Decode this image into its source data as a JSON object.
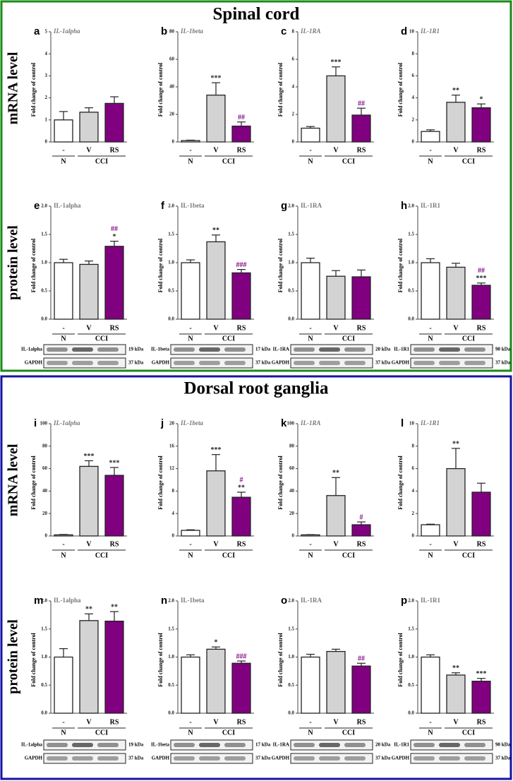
{
  "sections": [
    {
      "title": "Spinal cord",
      "rows": [
        "mRNA level",
        "protein level"
      ]
    },
    {
      "title": "Dorsal root ganglia",
      "rows": [
        "mRNA level",
        "protein level"
      ]
    }
  ],
  "chart_data": [
    {
      "type": "bar",
      "letter": "a",
      "title": "IL-1alpha",
      "ylabel": "Fold change of control",
      "categories": [
        "-",
        "V",
        "RS"
      ],
      "groups": [
        "N",
        "CCI"
      ],
      "colors": [
        "#ffffff",
        "#d3d3d3",
        "#800080"
      ],
      "values": [
        1,
        1.35,
        1.75
      ],
      "errors": [
        0.38,
        0.2,
        0.3
      ],
      "annotations": [
        [],
        [],
        []
      ],
      "ylim": [
        0,
        5
      ],
      "yticks": [
        0,
        1,
        2,
        3,
        4,
        5
      ]
    },
    {
      "type": "bar",
      "letter": "b",
      "title": "IL-1beta",
      "ylabel": "Fold change of control",
      "categories": [
        "-",
        "V",
        "RS"
      ],
      "groups": [
        "N",
        "CCI"
      ],
      "colors": [
        "#ffffff",
        "#d3d3d3",
        "#800080"
      ],
      "values": [
        1,
        34,
        11.5
      ],
      "errors": [
        0.3,
        9,
        3
      ],
      "annotations": [
        [],
        [
          {
            "text": "***",
            "color": "#222222"
          }
        ],
        [
          {
            "text": "##",
            "color": "#800080"
          }
        ]
      ],
      "ylim": [
        0,
        80
      ],
      "yticks": [
        0,
        20,
        40,
        60,
        80
      ]
    },
    {
      "type": "bar",
      "letter": "c",
      "title": "IL-1RA",
      "ylabel": "Fold change of control",
      "categories": [
        "-",
        "V",
        "RS"
      ],
      "groups": [
        "N",
        "CCI"
      ],
      "colors": [
        "#ffffff",
        "#d3d3d3",
        "#800080"
      ],
      "values": [
        1,
        4.8,
        1.95
      ],
      "errors": [
        0.12,
        0.65,
        0.5
      ],
      "annotations": [
        [],
        [
          {
            "text": "***",
            "color": "#222222"
          }
        ],
        [
          {
            "text": "##",
            "color": "#800080"
          }
        ]
      ],
      "ylim": [
        0,
        8
      ],
      "yticks": [
        0,
        2,
        4,
        6,
        8
      ]
    },
    {
      "type": "bar",
      "letter": "d",
      "title": "IL-1R1",
      "ylabel": "Fold change of control",
      "categories": [
        "-",
        "V",
        "RS"
      ],
      "groups": [
        "N",
        "CCI"
      ],
      "colors": [
        "#ffffff",
        "#d3d3d3",
        "#800080"
      ],
      "values": [
        0.95,
        3.6,
        3.1
      ],
      "errors": [
        0.15,
        0.65,
        0.35
      ],
      "annotations": [
        [],
        [
          {
            "text": "**",
            "color": "#222222"
          }
        ],
        [
          {
            "text": "*",
            "color": "#222222"
          }
        ]
      ],
      "ylim": [
        0,
        10
      ],
      "yticks": [
        0,
        2,
        4,
        6,
        8,
        10
      ]
    },
    {
      "type": "bar",
      "letter": "e",
      "title": "IL-1alpha",
      "ylabel": "Fold change of control",
      "categories": [
        "-",
        "V",
        "RS"
      ],
      "groups": [
        "N",
        "CCI"
      ],
      "colors": [
        "#ffffff",
        "#d3d3d3",
        "#800080"
      ],
      "values": [
        1.0,
        0.97,
        1.29
      ],
      "errors": [
        0.06,
        0.06,
        0.09
      ],
      "annotations": [
        [],
        [],
        [
          {
            "text": "*",
            "color": "#222222"
          },
          {
            "text": "##",
            "color": "#800080"
          }
        ]
      ],
      "ylim": [
        0,
        2
      ],
      "yticks": [
        {
          "value": 0,
          "label": "0.0"
        },
        {
          "value": 0.5,
          "label": "0.5"
        },
        {
          "value": 1,
          "label": "1.0"
        },
        {
          "value": 1.5,
          "label": "1.5"
        },
        {
          "value": 2,
          "label": "2.0"
        }
      ],
      "blot": [
        {
          "label": "IL-1alpha",
          "size": "19 kDa"
        },
        {
          "label": "GAPDH",
          "size": "37 kDa"
        }
      ]
    },
    {
      "type": "bar",
      "letter": "f",
      "title": "IL-1beta",
      "ylabel": "Fold change of control",
      "categories": [
        "-",
        "V",
        "RS"
      ],
      "groups": [
        "N",
        "CCI"
      ],
      "colors": [
        "#ffffff",
        "#d3d3d3",
        "#800080"
      ],
      "values": [
        1.0,
        1.37,
        0.82
      ],
      "errors": [
        0.05,
        0.12,
        0.06
      ],
      "annotations": [
        [],
        [
          {
            "text": "**",
            "color": "#222222"
          }
        ],
        [
          {
            "text": "###",
            "color": "#800080"
          }
        ]
      ],
      "ylim": [
        0,
        2
      ],
      "yticks": [
        {
          "value": 0,
          "label": "0.0"
        },
        {
          "value": 0.5,
          "label": "0.5"
        },
        {
          "value": 1,
          "label": "1.0"
        },
        {
          "value": 1.5,
          "label": "1.5"
        },
        {
          "value": 2,
          "label": "2.0"
        }
      ],
      "blot": [
        {
          "label": "IL-1beta",
          "size": "17 kDa"
        },
        {
          "label": "GAPDH",
          "size": "37 kDa"
        }
      ]
    },
    {
      "type": "bar",
      "letter": "g",
      "title": "IL-1RA",
      "ylabel": "Fold change of control",
      "categories": [
        "-",
        "V",
        "RS"
      ],
      "groups": [
        "N",
        "CCI"
      ],
      "colors": [
        "#ffffff",
        "#d3d3d3",
        "#800080"
      ],
      "values": [
        1.0,
        0.76,
        0.75
      ],
      "errors": [
        0.08,
        0.1,
        0.12
      ],
      "annotations": [
        [],
        [],
        []
      ],
      "ylim": [
        0,
        2
      ],
      "yticks": [
        {
          "value": 0,
          "label": "0.0"
        },
        {
          "value": 0.5,
          "label": "0.5"
        },
        {
          "value": 1,
          "label": "1.0"
        },
        {
          "value": 1.5,
          "label": "1.5"
        },
        {
          "value": 2,
          "label": "2.0"
        }
      ],
      "blot": [
        {
          "label": "IL-1RA",
          "size": "20 kDa"
        },
        {
          "label": "GAPDH",
          "size": "37 kDa"
        }
      ]
    },
    {
      "type": "bar",
      "letter": "h",
      "title": "IL-1R1",
      "ylabel": "Fold change of control",
      "categories": [
        "-",
        "V",
        "RS"
      ],
      "groups": [
        "N",
        "CCI"
      ],
      "colors": [
        "#ffffff",
        "#d3d3d3",
        "#800080"
      ],
      "values": [
        1.0,
        0.92,
        0.6
      ],
      "errors": [
        0.07,
        0.07,
        0.04
      ],
      "annotations": [
        [],
        [],
        [
          {
            "text": "***",
            "color": "#222222"
          },
          {
            "text": "##",
            "color": "#800080"
          }
        ]
      ],
      "ylim": [
        0,
        2
      ],
      "yticks": [
        {
          "value": 0,
          "label": "0.0"
        },
        {
          "value": 0.5,
          "label": "0.5"
        },
        {
          "value": 1,
          "label": "1.0"
        },
        {
          "value": 1.5,
          "label": "1.5"
        },
        {
          "value": 2,
          "label": "2.0"
        }
      ],
      "blot": [
        {
          "label": "IL-1R1",
          "size": "90 kDa"
        },
        {
          "label": "GAPDH",
          "size": "37 kDa"
        }
      ]
    },
    {
      "type": "bar",
      "letter": "i",
      "title": "IL-1alpha",
      "ylabel": "Fold change of control",
      "categories": [
        "-",
        "V",
        "RS"
      ],
      "groups": [
        "N",
        "CCI"
      ],
      "colors": [
        "#ffffff",
        "#d3d3d3",
        "#800080"
      ],
      "values": [
        1,
        62,
        54
      ],
      "errors": [
        0.3,
        5,
        7
      ],
      "annotations": [
        [],
        [
          {
            "text": "***",
            "color": "#222222"
          }
        ],
        [
          {
            "text": "***",
            "color": "#222222"
          }
        ]
      ],
      "ylim": [
        0,
        100
      ],
      "yticks": [
        0,
        20,
        40,
        60,
        80,
        100
      ]
    },
    {
      "type": "bar",
      "letter": "j",
      "title": "IL-1beta",
      "ylabel": "Fold change of control",
      "categories": [
        "-",
        "V",
        "RS"
      ],
      "groups": [
        "N",
        "CCI"
      ],
      "colors": [
        "#ffffff",
        "#d3d3d3",
        "#800080"
      ],
      "values": [
        1,
        11.6,
        6.9
      ],
      "errors": [
        0.1,
        2.9,
        0.9
      ],
      "annotations": [
        [],
        [
          {
            "text": "***",
            "color": "#222222"
          }
        ],
        [
          {
            "text": "**",
            "color": "#222222"
          },
          {
            "text": "#",
            "color": "#800080"
          }
        ]
      ],
      "ylim": [
        0,
        20
      ],
      "yticks": [
        0,
        4,
        8,
        12,
        16,
        20
      ]
    },
    {
      "type": "bar",
      "letter": "k",
      "title": "IL-1RA",
      "ylabel": "Fold change of control",
      "categories": [
        "-",
        "V",
        "RS"
      ],
      "groups": [
        "N",
        "CCI"
      ],
      "colors": [
        "#ffffff",
        "#d3d3d3",
        "#800080"
      ],
      "values": [
        1,
        36,
        10
      ],
      "errors": [
        0.2,
        16,
        2.5
      ],
      "annotations": [
        [],
        [
          {
            "text": "**",
            "color": "#222222"
          }
        ],
        [
          {
            "text": "#",
            "color": "#800080"
          }
        ]
      ],
      "ylim": [
        0,
        100
      ],
      "yticks": [
        0,
        20,
        40,
        60,
        80,
        100
      ]
    },
    {
      "type": "bar",
      "letter": "l",
      "title": "IL-1R1",
      "ylabel": "Fold change of control",
      "categories": [
        "-",
        "V",
        "RS"
      ],
      "groups": [
        "N",
        "CCI"
      ],
      "colors": [
        "#ffffff",
        "#d3d3d3",
        "#800080"
      ],
      "values": [
        1,
        6,
        3.9
      ],
      "errors": [
        0.05,
        1.8,
        0.8
      ],
      "annotations": [
        [],
        [
          {
            "text": "**",
            "color": "#222222"
          }
        ],
        []
      ],
      "ylim": [
        0,
        10
      ],
      "yticks": [
        0,
        2,
        4,
        6,
        8,
        10
      ]
    },
    {
      "type": "bar",
      "letter": "m",
      "title": "IL-1alpha",
      "ylabel": "Fold change of control",
      "categories": [
        "-",
        "V",
        "RS"
      ],
      "groups": [
        "N",
        "CCI"
      ],
      "colors": [
        "#ffffff",
        "#d3d3d3",
        "#800080"
      ],
      "values": [
        1.0,
        1.65,
        1.64
      ],
      "errors": [
        0.15,
        0.12,
        0.17
      ],
      "annotations": [
        [],
        [
          {
            "text": "**",
            "color": "#222222"
          }
        ],
        [
          {
            "text": "**",
            "color": "#222222"
          }
        ]
      ],
      "ylim": [
        0,
        2
      ],
      "yticks": [
        {
          "value": 0,
          "label": "0.0"
        },
        {
          "value": 0.5,
          "label": "0.5"
        },
        {
          "value": 1,
          "label": "1.0"
        },
        {
          "value": 1.5,
          "label": "1.5"
        },
        {
          "value": 2,
          "label": "2.0"
        }
      ],
      "blot": [
        {
          "label": "IL-1alpha",
          "size": "19 kDa"
        },
        {
          "label": "GAPDH",
          "size": "37 kDa"
        }
      ]
    },
    {
      "type": "bar",
      "letter": "n",
      "title": "IL-1beta",
      "ylabel": "Fold change of control",
      "categories": [
        "-",
        "V",
        "RS"
      ],
      "groups": [
        "N",
        "CCI"
      ],
      "colors": [
        "#ffffff",
        "#d3d3d3",
        "#800080"
      ],
      "values": [
        1.0,
        1.14,
        0.89
      ],
      "errors": [
        0.04,
        0.04,
        0.04
      ],
      "annotations": [
        [],
        [
          {
            "text": "*",
            "color": "#222222"
          }
        ],
        [
          {
            "text": "###",
            "color": "#800080"
          }
        ]
      ],
      "ylim": [
        0,
        2
      ],
      "yticks": [
        {
          "value": 0,
          "label": "0.0"
        },
        {
          "value": 0.5,
          "label": "0.5"
        },
        {
          "value": 1,
          "label": "1.0"
        },
        {
          "value": 1.5,
          "label": "1.5"
        },
        {
          "value": 2,
          "label": "2.0"
        }
      ],
      "blot": [
        {
          "label": "IL-1beta",
          "size": "17 kDa"
        },
        {
          "label": "GAPDH",
          "size": "37 kDa"
        }
      ]
    },
    {
      "type": "bar",
      "letter": "o",
      "title": "IL-1RA",
      "ylabel": "Fold change of control",
      "categories": [
        "-",
        "V",
        "RS"
      ],
      "groups": [
        "N",
        "CCI"
      ],
      "colors": [
        "#ffffff",
        "#d3d3d3",
        "#800080"
      ],
      "values": [
        1.0,
        1.1,
        0.84
      ],
      "errors": [
        0.05,
        0.04,
        0.05
      ],
      "annotations": [
        [],
        [],
        [
          {
            "text": "##",
            "color": "#800080"
          }
        ]
      ],
      "ylim": [
        0,
        2
      ],
      "yticks": [
        {
          "value": 0,
          "label": "0.0"
        },
        {
          "value": 0.5,
          "label": "0.5"
        },
        {
          "value": 1,
          "label": "1.0"
        },
        {
          "value": 1.5,
          "label": "1.5"
        },
        {
          "value": 2,
          "label": "2.0"
        }
      ],
      "blot": [
        {
          "label": "IL-1RA",
          "size": "20 kDa"
        },
        {
          "label": "GAPDH",
          "size": "37 kDa"
        }
      ]
    },
    {
      "type": "bar",
      "letter": "p",
      "title": "IL-1R1",
      "ylabel": "Fold change of control",
      "categories": [
        "-",
        "V",
        "RS"
      ],
      "groups": [
        "N",
        "CCI"
      ],
      "colors": [
        "#ffffff",
        "#d3d3d3",
        "#800080"
      ],
      "values": [
        1.0,
        0.68,
        0.57
      ],
      "errors": [
        0.04,
        0.04,
        0.05
      ],
      "annotations": [
        [],
        [
          {
            "text": "**",
            "color": "#222222"
          }
        ],
        [
          {
            "text": "***",
            "color": "#222222"
          }
        ]
      ],
      "ylim": [
        0,
        2
      ],
      "yticks": [
        {
          "value": 0,
          "label": "0.0"
        },
        {
          "value": 0.5,
          "label": "0.5"
        },
        {
          "value": 1,
          "label": "1.0"
        },
        {
          "value": 1.5,
          "label": "1.5"
        },
        {
          "value": 2,
          "label": "2.0"
        }
      ],
      "blot": [
        {
          "label": "IL-1R1",
          "size": "90 kDa"
        },
        {
          "label": "GAPDH",
          "size": "37 kDa"
        }
      ]
    }
  ]
}
